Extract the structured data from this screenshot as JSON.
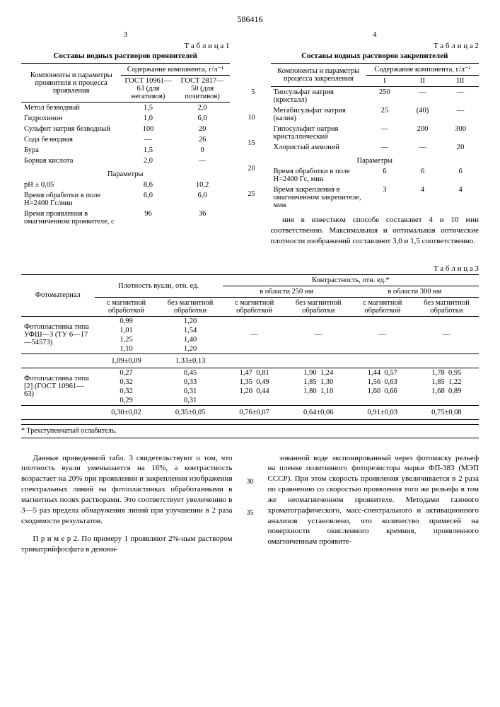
{
  "doc_number": "586416",
  "left_col_num": "3",
  "right_col_num": "4",
  "table1": {
    "label": "Т а б л и ц а  1",
    "caption": "Составы водных растворов проявителей",
    "head_left": "Компоненты и параметры проявителя и процесса проявления",
    "head_top": "Содержание компонента, г/л⁻¹",
    "head_c1": "ГОСТ 10961—63 (для негативов)",
    "head_c2": "ГОСТ 2817—50 (для позитивов)",
    "rows": [
      {
        "n": "Метол безводный",
        "a": "1,5",
        "b": "2,0"
      },
      {
        "n": "Гидрохинон",
        "a": "1,0",
        "b": "6,0"
      },
      {
        "n": "Сульфит натрия безводный",
        "a": "100",
        "b": "20"
      },
      {
        "n": "Сода безводная",
        "a": "—",
        "b": "26"
      },
      {
        "n": "Бура",
        "a": "1,5",
        "b": "0"
      },
      {
        "n": "Борная кислота",
        "a": "2,0",
        "b": "—"
      }
    ],
    "params_label": "Параметры",
    "params": [
      {
        "n": "pH ± 0,05",
        "a": "8,6",
        "b": "10,2"
      },
      {
        "n": "Время обработки в поле H=2400 Гс/мин",
        "a": "6,0",
        "b": "6,0"
      },
      {
        "n": "Время проявления в омагниченном проявителе, с",
        "a": "96",
        "b": "36"
      }
    ]
  },
  "table2": {
    "label": "Т а б л и ц а  2",
    "caption": "Составы водных растворов закрепителей",
    "head_left": "Компоненты и параметры процесса закрепления",
    "head_top": "Содержание компонента, г/л⁻¹",
    "cols": [
      "I",
      "II",
      "III"
    ],
    "rows": [
      {
        "n": "Тиосульфат натрия (кристалл)",
        "v": [
          "250",
          "—",
          "—"
        ]
      },
      {
        "n": "Метабисульфат натрия (калия)",
        "v": [
          "25",
          "(40)",
          "—"
        ]
      },
      {
        "n": "Гипосульфит натрия кристаллический",
        "v": [
          "—",
          "200",
          "300"
        ]
      },
      {
        "n": "Хлористый аммоний",
        "v": [
          "—",
          "—",
          "20"
        ]
      }
    ],
    "params_label": "Параметры",
    "params": [
      {
        "n": "Время обработки в поле H=2400 Гс, мин",
        "v": [
          "6",
          "6",
          "6"
        ]
      },
      {
        "n": "Время закрепления в омагниченном закрепителе, мин",
        "v": [
          "3",
          "4",
          "4"
        ]
      }
    ]
  },
  "right_para": "ния в известном способе составляет 4 и 10 мин соответственно. Максимальная и оптимальная оптические плотности изображений составляют 3,0 и 1,5 соответственно.",
  "line_nums_top": [
    "5",
    "10",
    "15",
    "20",
    "25"
  ],
  "table3": {
    "label": "Т а б л и ц а  3",
    "h_material": "Фотоматериал",
    "h_veil": "Плотность вуали, отн. ед.",
    "h_contrast": "Контрастность, отн. ед.*",
    "h_250": "в области 250 нм",
    "h_300": "в области 300 нм",
    "h_mag": "с магнитной обработкой",
    "h_nomag": "без магнитной обработки",
    "mat1": "Фотопластинка типа УФШ—3 (ТУ 6—17—54573)",
    "mat1_rows": [
      {
        "a": "0,99",
        "b": "1,20"
      },
      {
        "a": "1,01",
        "b": "1,54"
      },
      {
        "a": "1,25",
        "b": "1,40"
      },
      {
        "a": "1,10",
        "b": "1,20"
      }
    ],
    "mat1_dash": "—",
    "mat1_summary": {
      "a": "1,09±0,09",
      "b": "1,33±0,13"
    },
    "mat2": "Фотопластинка типа [2] (ГОСТ 10961—63)",
    "mat2_rows": [
      {
        "a": "0,27",
        "b": "0,45",
        "c": "1,47",
        "d": "0,81",
        "e": "1,90",
        "f": "1,24",
        "g": "1,44",
        "h": "0,57",
        "i": "1,78",
        "j": "0,95"
      },
      {
        "a": "0,32",
        "b": "0,33",
        "c": "1,35",
        "d": "0,49",
        "e": "1,85",
        "f": "1,30",
        "g": "1,56",
        "h": "0,63",
        "i": "1,85",
        "j": "1,22"
      },
      {
        "a": "0,32",
        "b": "0,31",
        "c": "1,20",
        "d": "0,44",
        "e": "1,80",
        "f": "1,10",
        "g": "1,60",
        "h": "0,66",
        "i": "1,68",
        "j": "0,89"
      },
      {
        "a": "0,29",
        "b": "0,31",
        "c": "",
        "d": "",
        "e": "",
        "f": "",
        "g": "",
        "h": "",
        "i": "",
        "j": ""
      }
    ],
    "mat2_summary": {
      "a": "0,30±0,02",
      "b": "0,35±0,05",
      "c": "0,76±0,07",
      "e": "0,64±0,06",
      "g": "0,91±0,03",
      "i": "0,75±0,08"
    },
    "footnote": "* Трехступенчатый ослабитель."
  },
  "bottom_left": "Данные приведенной табл. 3 свидетельствуют о том, что плотность вуали уменьшается на 16%, а контрастность возрастает на 20% при проявлении и закреплении изображения спектральных линий на фотопластинках обработанными в магнитных полях растворами. Это соответствует увеличению в 3—5 раз предела обнаружения линий при улучшении в 2 раза сходимости результатов.",
  "bottom_left2": "П р и м е р  2. По примеру 1 проявляют 2%-ным раствором тринатрийфосфата в деиони-",
  "bottom_right": "зованной воде экспонированный через фотомаску рельеф на пленке позитивного фоторезистора марки ФП-383 (МЭП СССР). При этом скорость проявления увеличивается в 2 раза по сравнению со скоростью проявления того же рельефа в том же неомагниченном проявителе. Методами газового хроматографического, масс-спектрального и активационного анализов установлено, что количество примесей на поверхности окисленного кремния, проявленного омагниченным проявите-",
  "line_nums_bottom": [
    "30",
    "35"
  ]
}
